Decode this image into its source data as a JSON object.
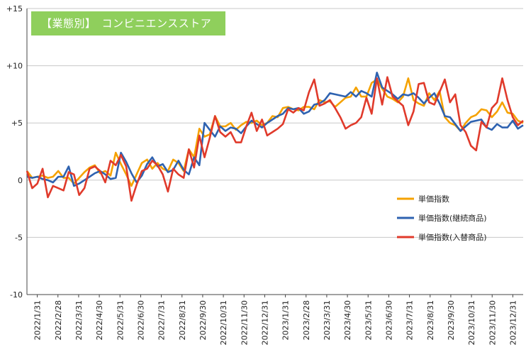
{
  "chart_data": {
    "type": "line",
    "title": "【業態別】　コンビニエンスストア",
    "xlabel": "",
    "ylabel": "",
    "ylim": [
      -10,
      15
    ],
    "y_ticks": [
      -10,
      -5,
      0,
      5,
      10,
      15
    ],
    "y_tick_labels": [
      "-10",
      "-5",
      "0",
      "+5",
      "+10",
      "+15"
    ],
    "grid": true,
    "legend_position": "right-middle",
    "x_tick_labels": [
      "2022/1/31",
      "2022/2/28",
      "2022/3/31",
      "2022/4/30",
      "2022/5/31",
      "2022/6/30",
      "2022/7/31",
      "2022/8/31",
      "2022/9/30",
      "2022/10/31",
      "2022/11/30",
      "2022/12/31",
      "2023/1/31",
      "2023/2/28",
      "2023/3/31",
      "2023/4/30",
      "2023/5/31",
      "2023/6/30",
      "2023/7/31",
      "2023/8/31",
      "2023/9/30",
      "2023/10/31",
      "2023/11/30",
      "2023/12/31"
    ],
    "series": [
      {
        "name": "単価指数",
        "color": "#f5a200",
        "values": [
          0.8,
          0.2,
          0.3,
          0.4,
          0.2,
          0.3,
          0.8,
          0.2,
          0.2,
          -0.3,
          0.2,
          0.7,
          1.1,
          1.3,
          0.6,
          0.8,
          0.4,
          2.4,
          1.4,
          0.5,
          -0.5,
          0.5,
          1.5,
          1.8,
          1.0,
          1.5,
          1.0,
          0.8,
          1.8,
          1.5,
          0.8,
          2.7,
          2.0,
          4.5,
          3.8,
          4.0,
          5.6,
          4.7,
          4.7,
          5.0,
          4.4,
          4.8,
          5.1,
          5.0,
          5.2,
          4.8,
          5.0,
          5.6,
          5.5,
          6.3,
          6.4,
          6.2,
          6.1,
          6.4,
          6.4,
          6.2,
          7.0,
          6.8,
          6.9,
          6.4,
          6.8,
          7.2,
          7.3,
          8.1,
          7.3,
          7.3,
          8.5,
          8.8,
          8.0,
          7.3,
          7.1,
          6.8,
          7.3,
          8.9,
          7.0,
          6.7,
          6.5,
          7.6,
          7.0,
          7.8,
          5.5,
          5.0,
          4.8,
          4.3,
          5.0,
          5.5,
          5.7,
          6.2,
          6.1,
          5.5,
          6.0,
          6.8,
          5.9,
          5.8,
          5.2,
          5.0
        ]
      },
      {
        "name": "単価指数(継続商品)",
        "color": "#2e62b0",
        "values": [
          0.3,
          0.2,
          0.3,
          0.1,
          0.0,
          -0.2,
          0.3,
          0.3,
          1.2,
          -0.5,
          -0.3,
          0.0,
          0.3,
          0.6,
          0.8,
          0.5,
          0.1,
          0.2,
          2.4,
          1.6,
          0.6,
          -0.2,
          0.4,
          1.4,
          2.0,
          1.2,
          1.4,
          0.7,
          0.9,
          1.7,
          0.9,
          0.5,
          2.0,
          1.3,
          5.0,
          4.4,
          3.8,
          4.7,
          4.3,
          4.6,
          4.5,
          4.1,
          4.7,
          5.2,
          4.9,
          4.6,
          5.0,
          5.3,
          5.6,
          5.8,
          6.3,
          6.2,
          6.3,
          5.8,
          6.0,
          6.6,
          6.7,
          7.0,
          7.6,
          7.5,
          7.4,
          7.3,
          7.7,
          7.3,
          7.8,
          7.6,
          7.3,
          9.4,
          8.1,
          7.8,
          7.5,
          7.1,
          7.5,
          7.4,
          7.6,
          7.2,
          6.7,
          7.2,
          7.6,
          6.7,
          5.6,
          5.5,
          4.9,
          4.3,
          4.7,
          5.1,
          5.2,
          5.3,
          4.6,
          4.4,
          4.9,
          4.6,
          4.6,
          5.2,
          4.5,
          4.8
        ]
      },
      {
        "name": "単価指数(入替商品)",
        "color": "#e03a2b",
        "values": [
          0.8,
          -0.7,
          -0.3,
          1.0,
          -1.5,
          -0.5,
          -0.7,
          -0.9,
          0.7,
          0.5,
          -1.3,
          -0.7,
          1.0,
          1.2,
          0.8,
          -0.2,
          1.7,
          1.3,
          2.2,
          1.2,
          -1.8,
          -0.4,
          0.8,
          1.0,
          1.7,
          1.3,
          0.5,
          -1.0,
          1.0,
          0.5,
          0.2,
          2.7,
          1.1,
          3.9,
          2.0,
          3.7,
          5.6,
          4.2,
          3.8,
          4.2,
          3.3,
          3.3,
          4.7,
          5.9,
          4.3,
          5.3,
          3.9,
          4.2,
          4.5,
          4.9,
          6.2,
          5.9,
          6.3,
          6.1,
          7.7,
          8.8,
          6.5,
          6.7,
          7.0,
          6.3,
          5.5,
          4.5,
          4.8,
          5.0,
          5.5,
          7.2,
          5.8,
          8.9,
          6.6,
          9.0,
          7.3,
          6.9,
          6.5,
          4.8,
          6.0,
          8.4,
          8.5,
          6.8,
          6.6,
          7.7,
          8.8,
          6.8,
          7.5,
          4.8,
          4.2,
          3.0,
          2.6,
          5.1,
          4.6,
          6.3,
          6.8,
          8.9,
          7.0,
          5.5,
          4.8,
          5.2
        ]
      }
    ]
  }
}
